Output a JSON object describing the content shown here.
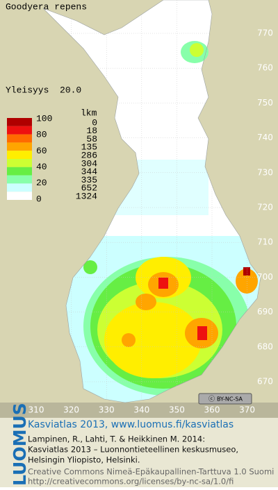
{
  "title": "Goodyera repens",
  "frequency_label": "Yleisyys  20.0",
  "legend": {
    "count_header": "lkm",
    "scale_labels": [
      "100",
      "80",
      "60",
      "40",
      "20",
      "0"
    ],
    "levels": [
      {
        "color": "#b00000",
        "count": 0
      },
      {
        "color": "#ee1010",
        "count": 18
      },
      {
        "color": "#ff6a00",
        "count": 58
      },
      {
        "color": "#ffa500",
        "count": 135
      },
      {
        "color": "#ffee00",
        "count": 286
      },
      {
        "color": "#ccff33",
        "count": 304
      },
      {
        "color": "#66ee44",
        "count": 344
      },
      {
        "color": "#88ffaa",
        "count": 335
      },
      {
        "color": "#ccffff",
        "count": 652
      },
      {
        "color": "#ffffff",
        "count": 1324
      }
    ]
  },
  "axes": {
    "x_labels": [
      310,
      320,
      330,
      340,
      350,
      360,
      370
    ],
    "y_labels": [
      770,
      760,
      750,
      740,
      730,
      720,
      710,
      700,
      690,
      680,
      670
    ]
  },
  "license_badge": "BY-NC-SA",
  "footer": {
    "logo": "LUOMUS",
    "link": "Kasviatlas 2013, www.luomus.fi/kasviatlas",
    "citation": [
      "Lampinen, R., Lahti, T. & Heikkinen M. 2014:",
      "Kasviatlas 2013 – Luonnontieteellinen keskusmuseo,",
      "Helsingin Yliopisto, Helsinki."
    ],
    "license": [
      "Creative Commons Nimeä-Epäkaupallinen-Tarttuva 1.0 Suomi",
      "http://creativecommons.org/licenses/by-nc-sa/1.0/fi"
    ]
  }
}
